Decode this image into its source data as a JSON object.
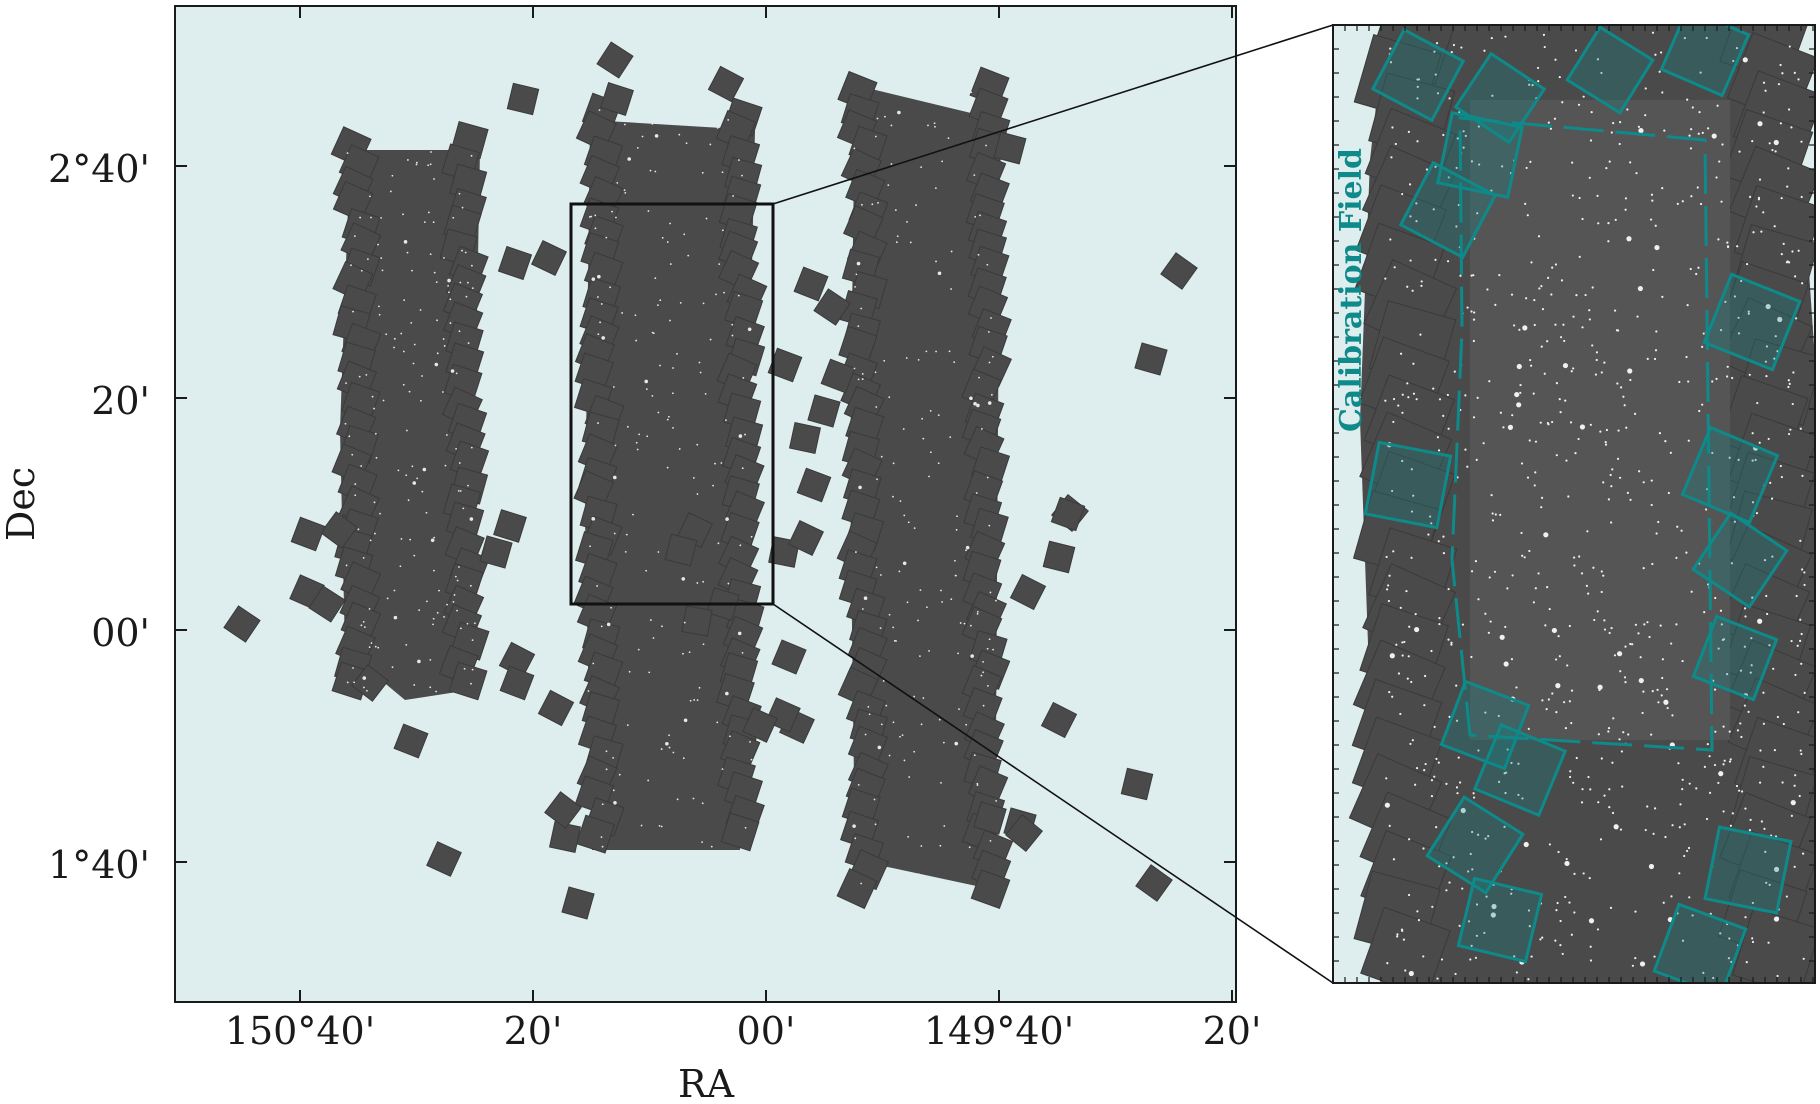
{
  "figure": {
    "xlabel": "RA",
    "ylabel": "Dec",
    "x_ticks": [
      "150°40'",
      "20'",
      "00'",
      "149°40'",
      "20'"
    ],
    "y_ticks": [
      "2°40'",
      "20'",
      "00'",
      "1°40'"
    ],
    "inset_label": "Calibration Field",
    "colors": {
      "background": "#deeded",
      "tile": "#4a4a4a",
      "tile_edge": "#3a3a3a",
      "calibration": "#0f8a8a",
      "frame": "#1a1a1a"
    }
  }
}
